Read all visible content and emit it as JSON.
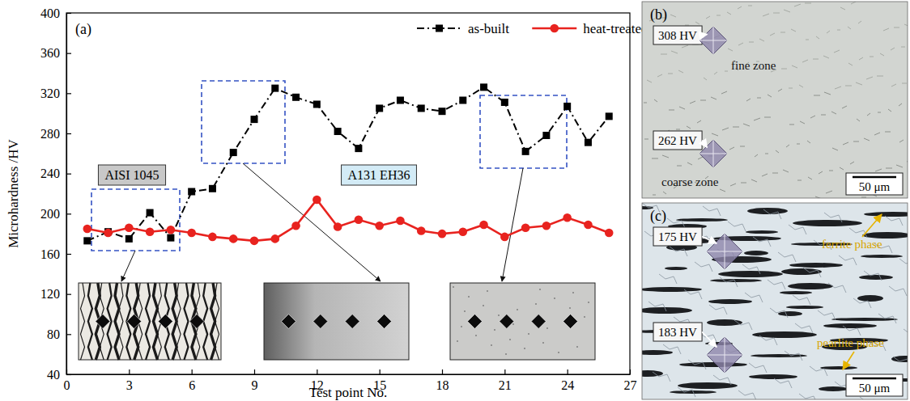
{
  "chart_data": {
    "type": "line",
    "x_label": "Test point No.",
    "y_label": "Microhardness /HV",
    "x": [
      1,
      2,
      3,
      4,
      5,
      6,
      7,
      8,
      9,
      10,
      11,
      12,
      13,
      14,
      15,
      16,
      17,
      18,
      19,
      20,
      21,
      22,
      23,
      24,
      25,
      26
    ],
    "series": [
      {
        "name": "as-built",
        "color": "#000000",
        "marker": "square",
        "line_style": "dashdot",
        "values": [
          173,
          182,
          175,
          201,
          176,
          222,
          225,
          261,
          294,
          325,
          316,
          309,
          282,
          265,
          305,
          313,
          305,
          302,
          313,
          326,
          311,
          262,
          278,
          307,
          271,
          297
        ]
      },
      {
        "name": "heat-treated",
        "color": "#e8231f",
        "marker": "circle",
        "line_style": "solid",
        "values": [
          185,
          181,
          186,
          182,
          184,
          181,
          177,
          175,
          173,
          175,
          188,
          214,
          187,
          194,
          188,
          193,
          183,
          180,
          182,
          189,
          177,
          186,
          188,
          196,
          189,
          181
        ]
      }
    ],
    "xlim": [
      0,
      27
    ],
    "xticks": [
      0,
      3,
      6,
      9,
      12,
      15,
      18,
      21,
      24,
      27
    ],
    "ylim": [
      40,
      400
    ],
    "yticks": [
      40,
      80,
      120,
      160,
      200,
      240,
      280,
      320,
      360,
      400
    ],
    "legend": "top",
    "annotations": [
      "(a)",
      "AISI 1045",
      "A131 EH36"
    ]
  },
  "micrographs": [
    {
      "label": "(b)",
      "annotations": [
        "308 HV",
        "fine zone",
        "262 HV",
        "coarse zone"
      ],
      "scale_bar": "50 μm"
    },
    {
      "label": "(c)",
      "annotations": [
        "175 HV",
        "ferrite phase",
        "183 HV",
        "pearlite phase"
      ],
      "scale_bar": "50 μm"
    }
  ]
}
